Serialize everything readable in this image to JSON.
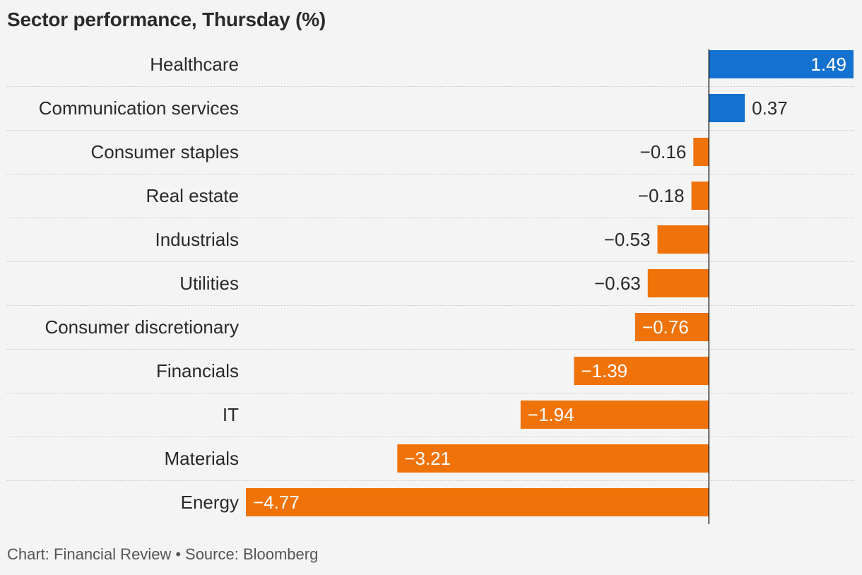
{
  "chart_data": {
    "type": "bar",
    "orientation": "horizontal",
    "title": "Sector performance, Thursday (%)",
    "categories": [
      "Healthcare",
      "Communication services",
      "Consumer staples",
      "Real estate",
      "Industrials",
      "Utilities",
      "Consumer discretionary",
      "Financials",
      "IT",
      "Materials",
      "Energy"
    ],
    "values": [
      1.49,
      0.37,
      -0.16,
      -0.18,
      -0.53,
      -0.63,
      -0.76,
      -1.39,
      -1.94,
      -3.21,
      -4.77
    ],
    "value_labels": [
      "1.49",
      "0.37",
      "−0.16",
      "−0.18",
      "−0.53",
      "−0.63",
      "−0.76",
      "−1.39",
      "−1.94",
      "−3.21",
      "−4.77"
    ],
    "xlim": [
      -4.77,
      1.49
    ],
    "colors": {
      "positive": "#1372cf",
      "negative": "#f0730a"
    },
    "grid": true
  },
  "footer": {
    "chart_credit": "Chart: Financial Review",
    "separator": "•",
    "source": "Source: Bloomberg"
  }
}
